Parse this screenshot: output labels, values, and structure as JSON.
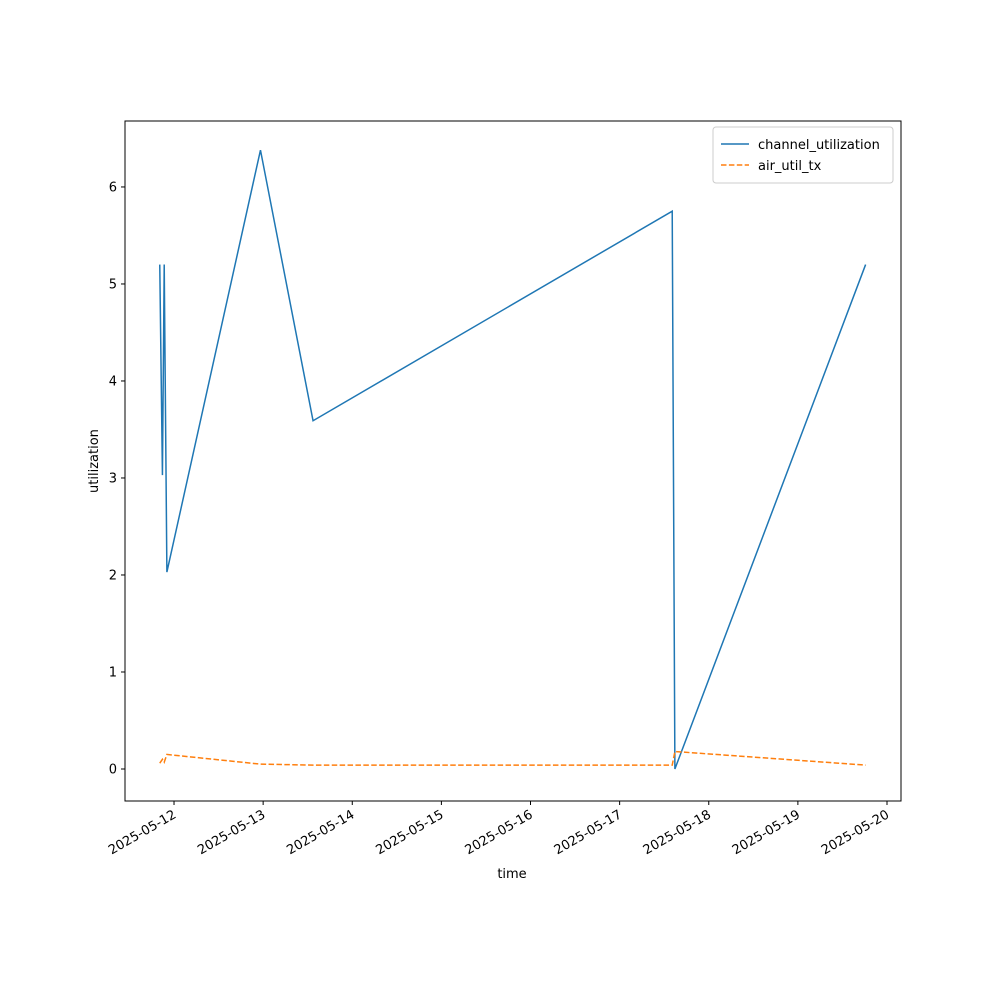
{
  "chart_data": {
    "type": "line",
    "xlabel": "time",
    "ylabel": "utilization",
    "x": [
      20219.84,
      20219.87,
      20219.89,
      20219.92,
      20220.97,
      20221.56,
      20225.59,
      20225.62,
      20227.76
    ],
    "series": [
      {
        "name": "channel_utilization",
        "color": "#1f77b4",
        "dash": false,
        "values": [
          5.2,
          3.03,
          5.2,
          2.03,
          6.38,
          3.59,
          5.75,
          0.0,
          5.2
        ]
      },
      {
        "name": "air_util_tx",
        "color": "#ff7f0e",
        "dash": true,
        "values": [
          0.06,
          0.1,
          0.07,
          0.15,
          0.05,
          0.04,
          0.04,
          0.18,
          0.04
        ]
      }
    ],
    "xlim": [
      20219.45,
      20228.157
    ],
    "ylim": [
      -0.33,
      6.68
    ],
    "xticks": [
      {
        "value": 20220,
        "label": "2025-05-12"
      },
      {
        "value": 20221,
        "label": "2025-05-13"
      },
      {
        "value": 20222,
        "label": "2025-05-14"
      },
      {
        "value": 20223,
        "label": "2025-05-15"
      },
      {
        "value": 20224,
        "label": "2025-05-16"
      },
      {
        "value": 20225,
        "label": "2025-05-17"
      },
      {
        "value": 20226,
        "label": "2025-05-18"
      },
      {
        "value": 20227,
        "label": "2025-05-19"
      },
      {
        "value": 20228,
        "label": "2025-05-20"
      }
    ],
    "yticks": [
      0,
      1,
      2,
      3,
      4,
      5,
      6
    ],
    "grid": false,
    "legend": "upper right"
  }
}
